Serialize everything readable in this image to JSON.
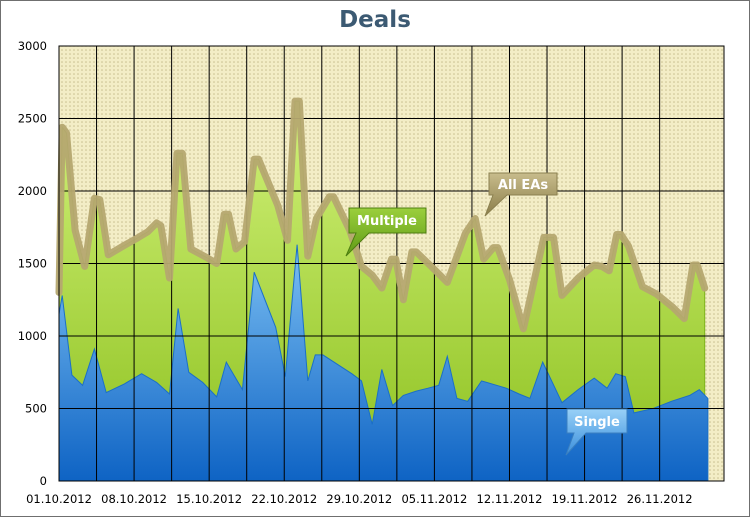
{
  "title": "Deals",
  "chart_data": {
    "type": "area",
    "title": "Deals",
    "xlabel": "",
    "ylabel": "",
    "x_tick_labels": [
      "01.10.2012",
      "08.10.2012",
      "15.10.2012",
      "22.10.2012",
      "29.10.2012",
      "05.11.2012",
      "12.11.2012",
      "19.11.2012",
      "26.11.2012"
    ],
    "y_tick_labels": [
      "0",
      "500",
      "1000",
      "1500",
      "2000",
      "2500",
      "3000"
    ],
    "ylim": [
      0,
      3000
    ],
    "xlim_days": [
      0,
      62
    ],
    "grid": true,
    "series": [
      {
        "name": "All EAs",
        "color": "#b5a870",
        "points": [
          [
            0,
            1300
          ],
          [
            0.3,
            2440
          ],
          [
            0.7,
            2400
          ],
          [
            1.5,
            1730
          ],
          [
            2.4,
            1480
          ],
          [
            3.3,
            1950
          ],
          [
            3.8,
            1940
          ],
          [
            4.6,
            1560
          ],
          [
            6.2,
            1630
          ],
          [
            7.4,
            1680
          ],
          [
            8.3,
            1720
          ],
          [
            9.1,
            1780
          ],
          [
            9.5,
            1760
          ],
          [
            10.3,
            1400
          ],
          [
            11.0,
            2260
          ],
          [
            11.5,
            2260
          ],
          [
            12.3,
            1600
          ],
          [
            13.8,
            1540
          ],
          [
            14.7,
            1500
          ],
          [
            15.4,
            1840
          ],
          [
            15.8,
            1840
          ],
          [
            16.5,
            1600
          ],
          [
            17.3,
            1650
          ],
          [
            18.2,
            2220
          ],
          [
            18.6,
            2220
          ],
          [
            20.4,
            1900
          ],
          [
            21.3,
            1660
          ],
          [
            22.0,
            2620
          ],
          [
            22.4,
            2620
          ],
          [
            23.2,
            1550
          ],
          [
            24.0,
            1810
          ],
          [
            25.2,
            1960
          ],
          [
            25.6,
            1960
          ],
          [
            27.1,
            1730
          ],
          [
            28.2,
            1480
          ],
          [
            29.2,
            1420
          ],
          [
            30.1,
            1330
          ],
          [
            31.0,
            1530
          ],
          [
            31.4,
            1530
          ],
          [
            32.1,
            1250
          ],
          [
            32.9,
            1580
          ],
          [
            33.3,
            1580
          ],
          [
            34.7,
            1480
          ],
          [
            36.2,
            1370
          ],
          [
            37.9,
            1710
          ],
          [
            38.8,
            1810
          ],
          [
            39.6,
            1530
          ],
          [
            40.5,
            1610
          ],
          [
            40.9,
            1610
          ],
          [
            42.0,
            1390
          ],
          [
            43.3,
            1050
          ],
          [
            45.2,
            1680
          ],
          [
            46.1,
            1680
          ],
          [
            46.9,
            1280
          ],
          [
            48.4,
            1400
          ],
          [
            49.9,
            1490
          ],
          [
            50.6,
            1480
          ],
          [
            51.3,
            1450
          ],
          [
            52.0,
            1700
          ],
          [
            52.4,
            1700
          ],
          [
            53.1,
            1620
          ],
          [
            54.4,
            1340
          ],
          [
            55.7,
            1290
          ],
          [
            57.2,
            1200
          ],
          [
            58.3,
            1120
          ],
          [
            59.1,
            1490
          ],
          [
            59.5,
            1490
          ],
          [
            60.2,
            1330
          ]
        ]
      },
      {
        "name": "Multiple",
        "color": "#a3d23c",
        "points": [
          [
            0,
            1300
          ],
          [
            0.3,
            2440
          ],
          [
            0.7,
            2400
          ],
          [
            1.5,
            1730
          ],
          [
            2.4,
            1480
          ],
          [
            3.3,
            1950
          ],
          [
            3.8,
            1940
          ],
          [
            4.6,
            1560
          ],
          [
            6.2,
            1630
          ],
          [
            7.4,
            1680
          ],
          [
            8.3,
            1720
          ],
          [
            9.1,
            1780
          ],
          [
            9.5,
            1760
          ],
          [
            10.3,
            1400
          ],
          [
            11.0,
            2260
          ],
          [
            11.5,
            2260
          ],
          [
            12.3,
            1600
          ],
          [
            13.8,
            1540
          ],
          [
            14.7,
            1500
          ],
          [
            15.4,
            1840
          ],
          [
            15.8,
            1840
          ],
          [
            16.5,
            1600
          ],
          [
            17.3,
            1650
          ],
          [
            18.2,
            2220
          ],
          [
            18.6,
            2220
          ],
          [
            20.4,
            1900
          ],
          [
            21.3,
            1660
          ],
          [
            22.0,
            2620
          ],
          [
            22.4,
            2620
          ],
          [
            23.2,
            1550
          ],
          [
            24.0,
            1810
          ],
          [
            25.2,
            1960
          ],
          [
            25.6,
            1960
          ],
          [
            27.1,
            1730
          ],
          [
            28.2,
            1480
          ],
          [
            29.2,
            1420
          ],
          [
            30.1,
            1330
          ],
          [
            31.0,
            1530
          ],
          [
            31.4,
            1530
          ],
          [
            32.1,
            1250
          ],
          [
            32.9,
            1580
          ],
          [
            33.3,
            1580
          ],
          [
            34.7,
            1480
          ],
          [
            36.2,
            1370
          ],
          [
            37.9,
            1710
          ],
          [
            38.8,
            1810
          ],
          [
            39.6,
            1530
          ],
          [
            40.5,
            1610
          ],
          [
            40.9,
            1610
          ],
          [
            42.0,
            1390
          ],
          [
            43.3,
            1050
          ],
          [
            45.2,
            1680
          ],
          [
            46.1,
            1680
          ],
          [
            46.9,
            1280
          ],
          [
            48.4,
            1400
          ],
          [
            49.9,
            1490
          ],
          [
            50.6,
            1480
          ],
          [
            51.3,
            1450
          ],
          [
            52.0,
            1700
          ],
          [
            52.4,
            1700
          ],
          [
            53.1,
            1620
          ],
          [
            54.4,
            1340
          ],
          [
            55.7,
            1290
          ],
          [
            57.2,
            1200
          ],
          [
            58.3,
            1120
          ],
          [
            59.1,
            1490
          ],
          [
            59.5,
            1490
          ],
          [
            60.2,
            1330
          ]
        ]
      },
      {
        "name": "Single",
        "color": "#3f8fd8",
        "points": [
          [
            0,
            1150
          ],
          [
            0.3,
            1280
          ],
          [
            1.2,
            730
          ],
          [
            2.2,
            660
          ],
          [
            3.3,
            910
          ],
          [
            4.4,
            610
          ],
          [
            6.1,
            670
          ],
          [
            7.7,
            740
          ],
          [
            9.1,
            680
          ],
          [
            10.3,
            600
          ],
          [
            11.1,
            1190
          ],
          [
            12.1,
            750
          ],
          [
            13.4,
            680
          ],
          [
            14.7,
            580
          ],
          [
            15.6,
            820
          ],
          [
            17.1,
            630
          ],
          [
            18.2,
            1440
          ],
          [
            20.2,
            1060
          ],
          [
            21.1,
            720
          ],
          [
            22.2,
            1630
          ],
          [
            23.2,
            690
          ],
          [
            23.9,
            870
          ],
          [
            24.6,
            870
          ],
          [
            27.3,
            740
          ],
          [
            28.2,
            690
          ],
          [
            29.2,
            390
          ],
          [
            30.1,
            770
          ],
          [
            31.1,
            520
          ],
          [
            32.1,
            590
          ],
          [
            33.3,
            620
          ],
          [
            34.4,
            640
          ],
          [
            35.4,
            660
          ],
          [
            36.2,
            860
          ],
          [
            37.1,
            570
          ],
          [
            38.1,
            550
          ],
          [
            39.4,
            690
          ],
          [
            41.7,
            640
          ],
          [
            42.9,
            600
          ],
          [
            43.9,
            570
          ],
          [
            45.1,
            820
          ],
          [
            46.9,
            540
          ],
          [
            48.4,
            630
          ],
          [
            49.9,
            710
          ],
          [
            51.1,
            640
          ],
          [
            51.9,
            740
          ],
          [
            52.8,
            720
          ],
          [
            53.6,
            470
          ],
          [
            55.4,
            500
          ],
          [
            57.1,
            550
          ],
          [
            58.8,
            590
          ],
          [
            59.7,
            630
          ],
          [
            60.5,
            570
          ]
        ]
      }
    ]
  }
}
